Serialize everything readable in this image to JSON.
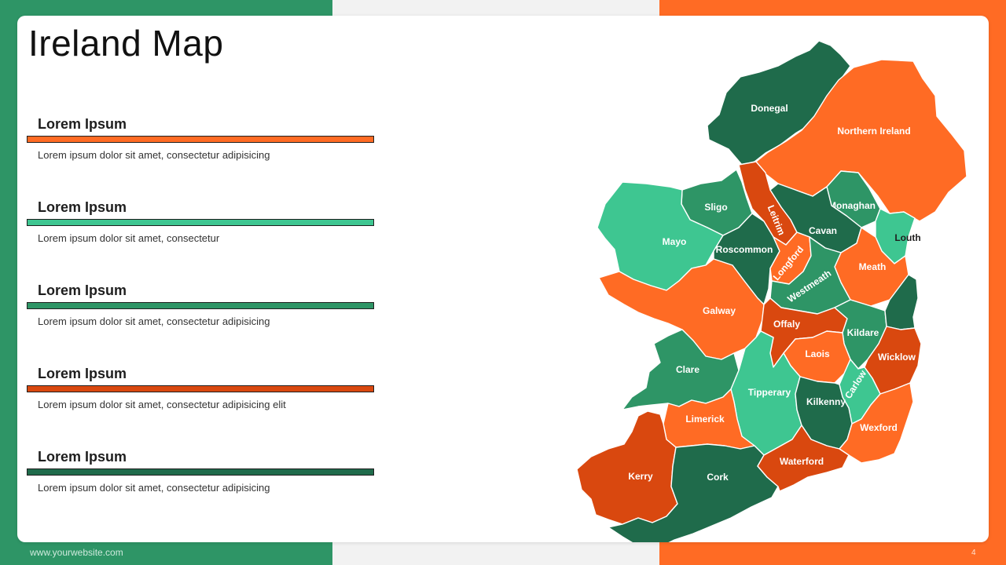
{
  "title": "Ireland Map",
  "items": [
    {
      "heading": "Lorem Ipsum",
      "text": "Lorem ipsum dolor sit amet, consectetur adipisicing",
      "color": "#ff6b24"
    },
    {
      "heading": "Lorem Ipsum",
      "text": "Lorem ipsum dolor sit amet, consectetur",
      "color": "#3ec691"
    },
    {
      "heading": "Lorem Ipsum",
      "text": "Lorem ipsum dolor sit amet, consectetur adipisicing",
      "color": "#2e9566"
    },
    {
      "heading": "Lorem Ipsum",
      "text": "Lorem ipsum dolor sit amet, consectetur adipisicing elit",
      "color": "#d9480f"
    },
    {
      "heading": "Lorem Ipsum",
      "text": "Lorem ipsum dolor sit amet, consectetur adipisicing",
      "color": "#1f6b4b"
    }
  ],
  "map": {
    "counties": {
      "donegal": "Donegal",
      "northern_ireland": "Northern Ireland",
      "sligo": "Sligo",
      "leitrim": "Leitrim",
      "monaghan": "Monaghan",
      "cavan": "Cavan",
      "louth": "Louth",
      "mayo": "Mayo",
      "roscommon": "Roscommon",
      "longford": "Longford",
      "meath": "Meath",
      "westmeath": "Westmeath",
      "galway": "Galway",
      "offaly": "Offaly",
      "kildare": "Kildare",
      "dublin": "",
      "laois": "Laois",
      "wicklow": "Wicklow",
      "clare": "Clare",
      "carlow": "Carlow",
      "tipperary": "Tipperary",
      "kilkenny": "Kilkenny",
      "limerick": "Limerick",
      "wexford": "Wexford",
      "kerry": "Kerry",
      "cork": "Cork",
      "waterford": "Waterford"
    },
    "colors": {
      "dark_green": "#1f6b4b",
      "mid_green": "#2e9566",
      "light_green": "#3ec691",
      "orange": "#ff6b24",
      "dark_orange": "#d9480f"
    }
  },
  "footer": {
    "url": "www.yourwebsite.com",
    "page": "4"
  }
}
